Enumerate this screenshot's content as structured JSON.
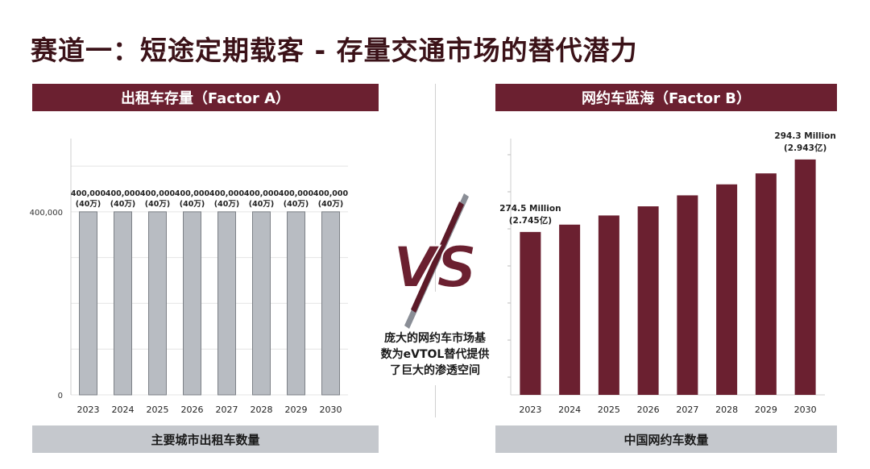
{
  "title": "赛道一：短途定期载客 - 存量交通市场的替代潜力",
  "left_panel": {
    "header": "出租车存量（Factor A）",
    "footer": "主要城市出租车数量"
  },
  "right_panel": {
    "header": "网约车蓝海（Factor B）",
    "footer": "中国网约车数量"
  },
  "vs_text": "VS",
  "note": {
    "line1": "庞大的网约车市场基",
    "line2": "数为eVTOL替代提供",
    "line3": "了巨大的渗透空间"
  },
  "colors": {
    "title": "#3b1218",
    "accent": "#6b2030",
    "left_bars": "#b8bcc2",
    "right_bars": "#6b2030",
    "footer_bg": "#c5c8cd"
  },
  "chart_data": [
    {
      "type": "bar",
      "categories": [
        "2023",
        "2024",
        "2025",
        "2026",
        "2027",
        "2028",
        "2029",
        "2030"
      ],
      "values": [
        400000,
        400000,
        400000,
        400000,
        400000,
        400000,
        400000,
        400000
      ],
      "data_labels": [
        [
          "400,000",
          "(40万)"
        ],
        [
          "400,000",
          "(40万)"
        ],
        [
          "400,000",
          "(40万)"
        ],
        [
          "400,000",
          "(40万)"
        ],
        [
          "400,000",
          "(40万)"
        ],
        [
          "400,000",
          "(40万)"
        ],
        [
          "400,000",
          "(40万)"
        ],
        [
          "400,000",
          "(40万)"
        ]
      ],
      "yticks": [
        "0",
        "400,000"
      ],
      "ylim": [
        0,
        560000
      ],
      "grid": true
    },
    {
      "type": "bar",
      "categories": [
        "2023",
        "2024",
        "2025",
        "2026",
        "2027",
        "2028",
        "2029",
        "2030"
      ],
      "values": [
        274.5,
        276.5,
        279,
        281.5,
        284.5,
        287.5,
        290.5,
        294.3
      ],
      "unit": "Million",
      "ylim": [
        230,
        300
      ],
      "data_labels": {
        "0": [
          "274.5 Million",
          "(2.745亿)"
        ],
        "7": [
          "294.3 Million",
          "(2.943亿)"
        ]
      },
      "grid": false
    }
  ]
}
